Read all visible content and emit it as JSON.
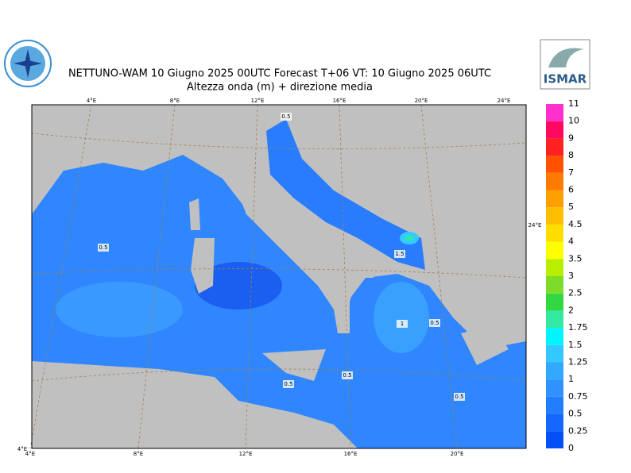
{
  "header": {
    "title": "NETTUNO-WAM  10   Giugno  2025 00UTC Forecast T+06 VT: 10   Giugno  2025 06UTC",
    "subtitle": "Altezza onda (m) + direzione media"
  },
  "logos": {
    "right": "ISMAR"
  },
  "colorbar": {
    "levels": [
      0,
      0.25,
      0.5,
      0.75,
      1,
      1.25,
      1.5,
      1.75,
      2,
      2.5,
      3,
      3.5,
      4,
      4.5,
      5,
      6,
      7,
      8,
      9,
      10,
      11
    ],
    "colors": [
      "#0050f5",
      "#1467ff",
      "#237dff",
      "#2f92ff",
      "#33a8ff",
      "#33c8ff",
      "#00f5ff",
      "#33e8a0",
      "#33d840",
      "#7ddc2a",
      "#b8ee00",
      "#ffff00",
      "#ffdd00",
      "#ffbe00",
      "#ffa000",
      "#ff7a00",
      "#ff5200",
      "#ff2020",
      "#ff0860",
      "#ff30cc"
    ]
  },
  "map": {
    "top_lon_labels": [
      "4°E",
      "8°E",
      "12°E",
      "16°E",
      "20°E",
      "24°E"
    ],
    "bottom_lon_labels": [
      "4°E",
      "8°E",
      "12°E",
      "16°E",
      "20°E"
    ],
    "side_labels": [
      "24°E",
      "4°E"
    ],
    "contour_labels": [
      "0.5",
      "0.5",
      "1.5",
      "1",
      "0.5",
      "0.5",
      "0.5",
      "0.5"
    ]
  }
}
